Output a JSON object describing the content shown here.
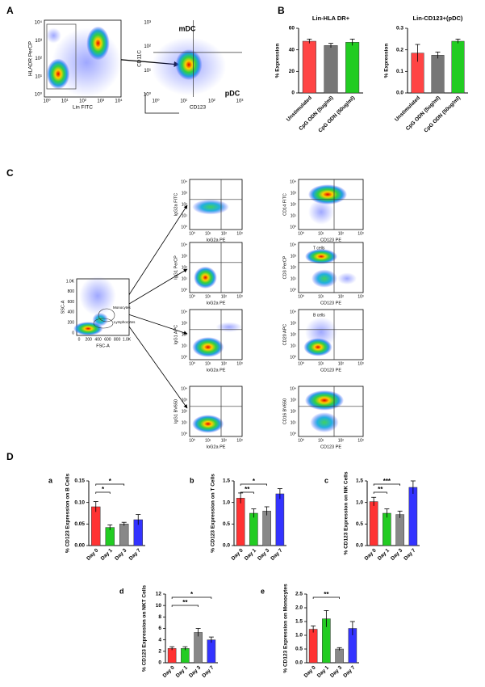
{
  "panel_labels": [
    "A",
    "B",
    "C",
    "D"
  ],
  "panel_a": {
    "plot1": {
      "x_label": "Lin FITC",
      "y_label": "HLADR PerCP",
      "xticks": [
        "10⁰",
        "10¹",
        "10²",
        "10³",
        "10⁴"
      ],
      "yticks": [
        "10⁰",
        "10¹",
        "10²",
        "10³",
        "10⁴"
      ]
    },
    "plot2": {
      "x_label": "CD123",
      "y_label": "CD11C",
      "gates": [
        "mDC",
        "pDC"
      ],
      "xticks": [
        "10⁰",
        "10¹",
        "10²",
        "10³"
      ],
      "yticks": [
        "10⁰",
        "10¹",
        "10²",
        "10³"
      ]
    }
  },
  "panel_c": {
    "scatter": {
      "x_label": "FSC-A",
      "y_label": "SSC-A",
      "xticks": [
        "0",
        "200",
        "400",
        "600",
        "800",
        "1.0K"
      ],
      "yticks": [
        "0",
        "200",
        "400",
        "600",
        "800",
        "1.0K"
      ],
      "gates": [
        "Monocytes",
        "Lymphocytes"
      ]
    },
    "xticks": [
      "10⁰",
      "10¹",
      "10²",
      "10³"
    ],
    "yticks": [
      "10⁰",
      "10¹",
      "10²",
      "10³",
      "10⁴"
    ],
    "plots": [
      {
        "x_label": "IoG2a PE",
        "y_label": "IgG2a FITC"
      },
      {
        "x_label": "CD123 PE",
        "y_label": "CD14 FITC"
      },
      {
        "x_label": "IoG2a PE",
        "y_label": "IgG1 PerCP"
      },
      {
        "x_label": "CD123 PE",
        "y_label": "CD3 PerCP",
        "gate": "T cells"
      },
      {
        "x_label": "IoG2a PE",
        "y_label": "IgG1 APC"
      },
      {
        "x_label": "CD123 PE",
        "y_label": "CD20 APC",
        "gate": "B cells"
      },
      {
        "x_label": "IoG2a PE",
        "y_label": "IgG1 BV650"
      },
      {
        "x_label": "CD123 PE",
        "y_label": "CD16 BV650"
      }
    ]
  },
  "chart_data": [
    {
      "type": "bar",
      "title": "Lin-HLA DR+",
      "y_label": "% Expression",
      "categories": [
        "Unstimulated",
        "CpG ODN (5ug/ml)",
        "CpG ODN (50ug/ml)"
      ],
      "values": [
        48,
        44,
        47
      ],
      "errors": [
        2,
        2,
        3
      ],
      "colors": [
        "#f44",
        "#777",
        "#2c2"
      ],
      "ylim": [
        0,
        60
      ],
      "yticks": [
        0,
        20,
        40,
        60
      ]
    },
    {
      "type": "bar",
      "title": "Lin-CD123+(pDC)",
      "y_label": "% Expression",
      "categories": [
        "Unstimulated",
        "CpG ODN (5ug/ml)",
        "CpG ODN (50ug/ml)"
      ],
      "values": [
        0.185,
        0.175,
        0.24
      ],
      "errors": [
        0.04,
        0.015,
        0.01
      ],
      "colors": [
        "#f44",
        "#777",
        "#2c2"
      ],
      "ylim": [
        0,
        0.3
      ],
      "yticks": [
        {
          "value": 0,
          "label": "0.0"
        },
        0.1,
        0.2,
        0.3
      ]
    },
    {
      "type": "bar",
      "panel": "a",
      "y_label": "% CD123 Expression on B Cells",
      "categories": [
        "Day 0",
        "Day 1",
        "Day 3",
        "Day 7"
      ],
      "values": [
        0.09,
        0.042,
        0.05,
        0.06
      ],
      "errors": [
        0.012,
        0.006,
        0.004,
        0.012
      ],
      "colors": [
        "#f33",
        "#2c2",
        "#888",
        "#33f"
      ],
      "ylim": [
        0,
        0.15
      ],
      "yticks": [
        {
          "value": 0,
          "label": "0.00"
        },
        0.05,
        {
          "value": 0.1,
          "label": "0.10"
        },
        0.15
      ],
      "significance": [
        {
          "from": "Day 0",
          "to": "Day 1",
          "label": "*"
        },
        {
          "from": "Day 0",
          "to": "Day 3",
          "label": "*"
        }
      ]
    },
    {
      "type": "bar",
      "panel": "b",
      "y_label": "% CD123 Expression on T Cells",
      "categories": [
        "Day 0",
        "Day 1",
        "Day 3",
        "Day 7"
      ],
      "values": [
        1.1,
        0.75,
        0.8,
        1.2
      ],
      "errors": [
        0.12,
        0.1,
        0.1,
        0.12
      ],
      "colors": [
        "#f33",
        "#2c2",
        "#888",
        "#33f"
      ],
      "ylim": [
        0,
        1.5
      ],
      "yticks": [
        {
          "value": 0,
          "label": "0.0"
        },
        0.5,
        {
          "value": 1,
          "label": "1.0"
        },
        1.5
      ],
      "significance": [
        {
          "from": "Day 0",
          "to": "Day 1",
          "label": "**"
        },
        {
          "from": "Day 0",
          "to": "Day 3",
          "label": "*"
        }
      ]
    },
    {
      "type": "bar",
      "panel": "c",
      "y_label": "% CD123 Expression on NK Cells",
      "categories": [
        "Day 0",
        "Day 1",
        "Day 3",
        "Day 7"
      ],
      "values": [
        1.02,
        0.75,
        0.72,
        1.35
      ],
      "errors": [
        0.1,
        0.1,
        0.08,
        0.15
      ],
      "colors": [
        "#f33",
        "#2c2",
        "#888",
        "#33f"
      ],
      "ylim": [
        0,
        1.5
      ],
      "yticks": [
        {
          "value": 0,
          "label": "0.0"
        },
        0.5,
        {
          "value": 1,
          "label": "1.0"
        },
        1.5
      ],
      "significance": [
        {
          "from": "Day 0",
          "to": "Day 1",
          "label": "**"
        },
        {
          "from": "Day 0",
          "to": "Day 3",
          "label": "***"
        }
      ]
    },
    {
      "type": "bar",
      "panel": "d",
      "y_label": "% CD123 Expression on NKT Cells",
      "categories": [
        "Day 0",
        "Day 1",
        "Day 3",
        "Day 7"
      ],
      "values": [
        2.5,
        2.5,
        5.3,
        4.0
      ],
      "errors": [
        0.3,
        0.3,
        0.7,
        0.5
      ],
      "colors": [
        "#f33",
        "#2c2",
        "#888",
        "#33f"
      ],
      "ylim": [
        0,
        12
      ],
      "yticks": [
        0,
        2,
        4,
        6,
        8,
        10,
        12
      ],
      "significance": [
        {
          "from": "Day 0",
          "to": "Day 3",
          "label": "**"
        },
        {
          "from": "Day 0",
          "to": "Day 7",
          "label": "*"
        }
      ]
    },
    {
      "type": "bar",
      "panel": "e",
      "y_label": "% CD123 Expression on Monocytes",
      "categories": [
        "Day 0",
        "Day 1",
        "Day 3",
        "Day 7"
      ],
      "values": [
        1.22,
        1.6,
        0.5,
        1.25
      ],
      "errors": [
        0.12,
        0.3,
        0.05,
        0.25
      ],
      "colors": [
        "#f33",
        "#2c2",
        "#888",
        "#33f"
      ],
      "ylim": [
        0,
        2.5
      ],
      "yticks": [
        {
          "value": 0,
          "label": "0.0"
        },
        0.5,
        {
          "value": 1,
          "label": "1.0"
        },
        1.5,
        {
          "value": 2,
          "label": "2.0"
        },
        2.5
      ],
      "significance": [
        {
          "from": "Day 0",
          "to": "Day 3",
          "label": "**"
        }
      ]
    }
  ]
}
